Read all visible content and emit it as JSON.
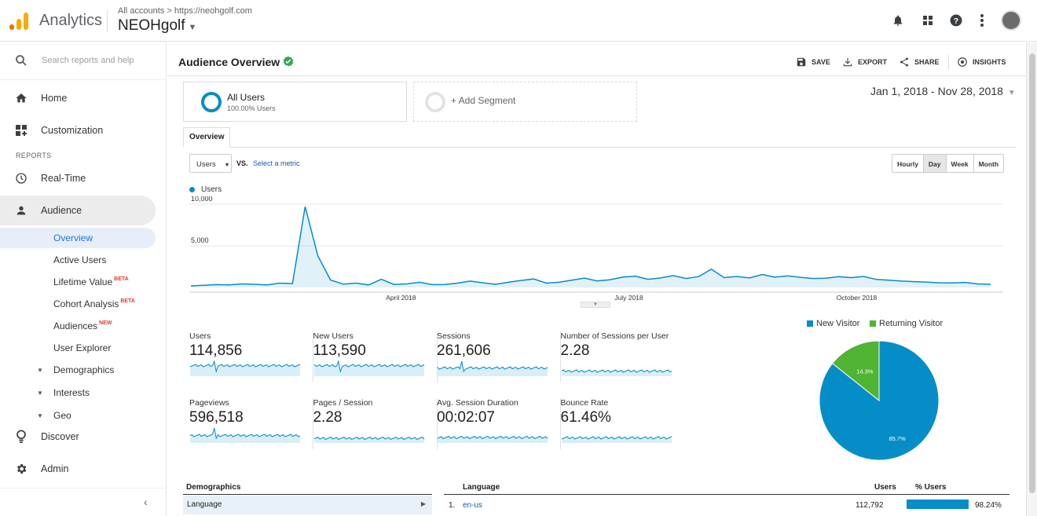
{
  "app": {
    "name": "Analytics",
    "breadcrumb": "All accounts > https://neohgolf.com",
    "property": "NEOHgolf"
  },
  "colors": {
    "accent": "#058dc7",
    "returning": "#50b432",
    "brand_orange": "#f9ab00",
    "brand_dark": "#e37400"
  },
  "sidebar": {
    "search_placeholder": "Search reports and help",
    "home": "Home",
    "customization": "Customization",
    "reports_label": "REPORTS",
    "realtime": "Real-Time",
    "audience": "Audience",
    "sub": {
      "overview": "Overview",
      "active_users": "Active Users",
      "lifetime_value": "Lifetime Value",
      "cohort_analysis": "Cohort Analysis",
      "audiences": "Audiences",
      "user_explorer": "User Explorer",
      "demographics": "Demographics",
      "interests": "Interests",
      "geo": "Geo"
    },
    "beta": "BETA",
    "new": "NEW",
    "discover": "Discover",
    "admin": "Admin"
  },
  "header": {
    "title": "Audience Overview",
    "save": "SAVE",
    "export": "EXPORT",
    "share": "SHARE",
    "insights": "INSIGHTS"
  },
  "segments": {
    "all_users": "All Users",
    "all_users_pct": "100.00% Users",
    "add": "+ Add Segment"
  },
  "date_range": "Jan 1, 2018 - Nov 28, 2018",
  "tab_overview": "Overview",
  "controls": {
    "metric": "Users",
    "vs": "VS.",
    "select_metric": "Select a metric",
    "granularity": [
      "Hourly",
      "Day",
      "Week",
      "Month"
    ],
    "selected_granularity": "Day"
  },
  "chart_data": {
    "type": "line",
    "series": [
      {
        "name": "Users",
        "values": [
          180,
          260,
          340,
          310,
          420,
          380,
          300,
          520,
          460,
          9700,
          3800,
          900,
          400,
          520,
          300,
          980,
          360,
          420,
          620,
          340,
          360,
          520,
          760,
          560,
          380,
          620,
          840,
          1020,
          520,
          620,
          880,
          1120,
          780,
          920,
          1240,
          1360,
          980,
          1140,
          1420,
          1080,
          1300,
          2200,
          1180,
          1320,
          1140,
          1560,
          1240,
          1400,
          1220,
          1080,
          1100,
          1300,
          1180,
          1320,
          960,
          880,
          760,
          700,
          640,
          560,
          540,
          600,
          420,
          380
        ]
      }
    ],
    "ylim": [
      0,
      10000
    ],
    "y_ticks": [
      "10,000",
      "5,000"
    ],
    "x_tick_labels": [
      "April 2018",
      "July 2018",
      "October 2018"
    ],
    "x_tick_positions": [
      0.26,
      0.54,
      0.82
    ]
  },
  "metrics": [
    {
      "label": "Users",
      "value": "114,856"
    },
    {
      "label": "New Users",
      "value": "113,590"
    },
    {
      "label": "Sessions",
      "value": "261,606"
    },
    {
      "label": "Number of Sessions per User",
      "value": "2.28"
    },
    {
      "label": "Pageviews",
      "value": "596,518"
    },
    {
      "label": "Pages / Session",
      "value": "2.28"
    },
    {
      "label": "Avg. Session Duration",
      "value": "00:02:07"
    },
    {
      "label": "Bounce Rate",
      "value": "61.46%"
    }
  ],
  "pie": {
    "legend": [
      "New Visitor",
      "Returning Visitor"
    ],
    "values": [
      85.7,
      14.3
    ],
    "labels": [
      "85.7%",
      "14.3%"
    ]
  },
  "demographics": {
    "header": "Demographics",
    "row": "Language"
  },
  "language_table": {
    "col_language": "Language",
    "col_users": "Users",
    "col_pct": "% Users",
    "rows": [
      {
        "rank": "1.",
        "lang": "en-us",
        "users": "112,792",
        "pct": "98.24%",
        "pct_value": 98.24
      }
    ]
  }
}
